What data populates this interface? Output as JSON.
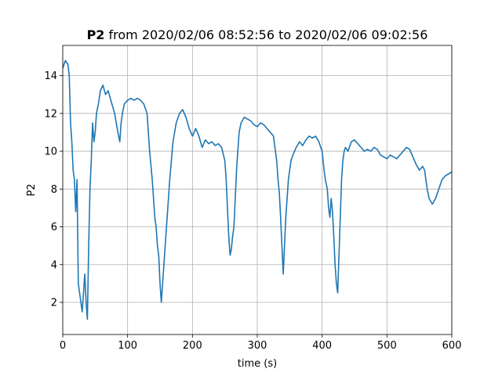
{
  "chart_data": {
    "type": "line",
    "title": {
      "bold": "P2",
      "rest": " from 2020/02/06 08:52:56 to 2020/02/06 09:02:56"
    },
    "xlabel": "time (s)",
    "ylabel": "P2",
    "xlim": [
      0,
      600
    ],
    "ylim": [
      0.3,
      15.6
    ],
    "xticks": [
      0,
      100,
      200,
      300,
      400,
      500,
      600
    ],
    "yticks": [
      2,
      4,
      6,
      8,
      10,
      12,
      14
    ],
    "grid": true,
    "line_color": "#1f77b4",
    "series": [
      {
        "x": [
          0,
          4,
          8,
          10,
          12,
          14,
          16,
          18,
          20,
          22,
          24,
          26,
          28,
          30,
          32,
          34,
          36,
          38,
          40,
          42,
          44,
          46,
          48,
          50,
          52,
          55,
          58,
          62,
          66,
          70,
          75,
          80,
          85,
          88,
          90,
          92,
          95,
          100,
          105,
          110,
          115,
          120,
          125,
          130,
          134,
          138,
          140,
          142,
          144,
          146,
          148,
          150,
          152,
          154,
          156,
          158,
          160,
          162,
          165,
          170,
          175,
          180,
          185,
          190,
          195,
          200,
          205,
          210,
          215,
          220,
          225,
          230,
          235,
          240,
          245,
          250,
          252,
          254,
          256,
          258,
          260,
          262,
          264,
          266,
          268,
          270,
          272,
          275,
          280,
          285,
          290,
          295,
          300,
          305,
          310,
          315,
          320,
          325,
          328,
          330,
          332,
          334,
          336,
          338,
          340,
          342,
          344,
          346,
          348,
          350,
          352,
          355,
          360,
          365,
          370,
          375,
          380,
          385,
          390,
          395,
          400,
          403,
          405,
          408,
          410,
          412,
          414,
          416,
          418,
          420,
          422,
          424,
          426,
          428,
          430,
          432,
          434,
          436,
          440,
          445,
          450,
          455,
          460,
          465,
          470,
          475,
          480,
          485,
          490,
          495,
          500,
          505,
          510,
          515,
          520,
          525,
          530,
          535,
          540,
          545,
          550,
          555,
          558,
          560,
          562,
          565,
          570,
          575,
          580,
          585,
          590,
          595,
          600
        ],
        "y": [
          14.4,
          14.8,
          14.6,
          14.0,
          11.5,
          10.5,
          9.0,
          8.5,
          6.8,
          8.5,
          3.0,
          2.5,
          2.0,
          1.5,
          2.5,
          3.5,
          2.0,
          1.1,
          5.0,
          8.0,
          9.5,
          11.5,
          10.5,
          11.0,
          12.0,
          12.5,
          13.2,
          13.5,
          13.0,
          13.2,
          12.6,
          12.0,
          11.0,
          10.5,
          11.5,
          12.0,
          12.5,
          12.7,
          12.8,
          12.7,
          12.8,
          12.7,
          12.5,
          12.0,
          10.0,
          8.5,
          7.5,
          6.5,
          6.0,
          5.0,
          4.5,
          3.0,
          2.0,
          3.0,
          4.0,
          5.0,
          6.0,
          7.0,
          8.5,
          10.5,
          11.5,
          12.0,
          12.2,
          11.8,
          11.2,
          10.8,
          11.2,
          10.8,
          10.2,
          10.6,
          10.4,
          10.5,
          10.3,
          10.4,
          10.2,
          9.5,
          8.5,
          7.0,
          5.5,
          4.5,
          4.8,
          5.5,
          6.0,
          7.5,
          9.0,
          10.0,
          11.0,
          11.5,
          11.8,
          11.7,
          11.6,
          11.4,
          11.3,
          11.5,
          11.4,
          11.2,
          11.0,
          10.8,
          10.0,
          9.5,
          8.5,
          7.8,
          6.5,
          5.0,
          3.5,
          5.0,
          6.5,
          7.5,
          8.5,
          9.0,
          9.5,
          9.8,
          10.2,
          10.5,
          10.3,
          10.6,
          10.8,
          10.7,
          10.8,
          10.5,
          10.0,
          9.0,
          8.5,
          8.0,
          7.0,
          6.5,
          7.5,
          6.8,
          5.5,
          4.0,
          3.0,
          2.5,
          4.5,
          6.5,
          8.5,
          9.5,
          10.0,
          10.2,
          10.0,
          10.5,
          10.6,
          10.4,
          10.2,
          10.0,
          10.1,
          10.0,
          10.2,
          10.1,
          9.8,
          9.7,
          9.6,
          9.8,
          9.7,
          9.6,
          9.8,
          10.0,
          10.2,
          10.1,
          9.7,
          9.3,
          9.0,
          9.2,
          9.0,
          8.5,
          8.0,
          7.5,
          7.2,
          7.5,
          8.0,
          8.5,
          8.7,
          8.8,
          8.9
        ]
      }
    ]
  }
}
